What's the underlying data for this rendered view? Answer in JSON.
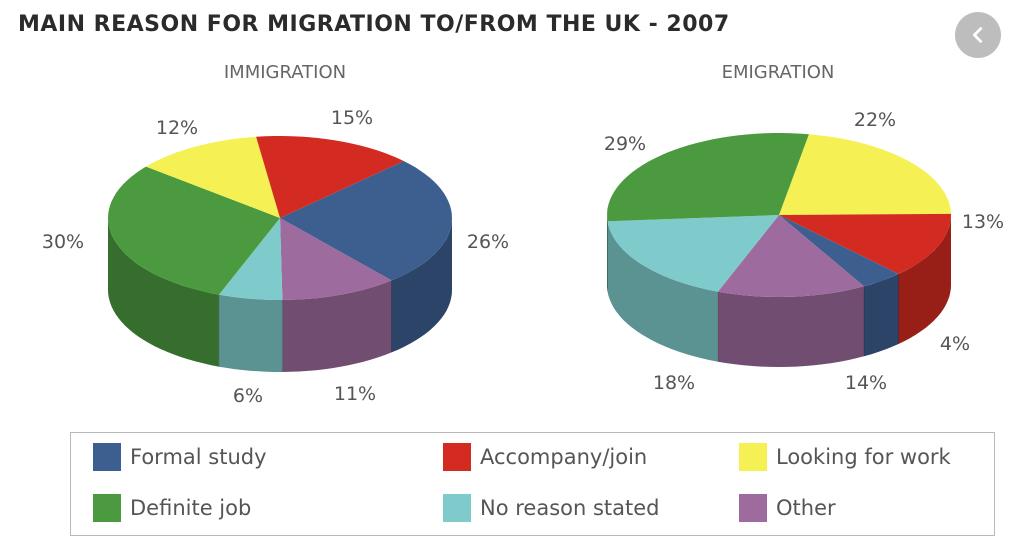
{
  "title": "MAIN REASON FOR MIGRATION TO/FROM THE UK - 2007",
  "back_icon": "chevron-left-icon",
  "colors": {
    "formal_study": "#3d5f8f",
    "accompany_join": "#d32b22",
    "looking_for_work": "#f5f054",
    "definite_job": "#4b9a3f",
    "no_reason_stated": "#7fcbcb",
    "other": "#9d6b9d"
  },
  "chart_data": [
    {
      "type": "pie",
      "title": "IMMIGRATION",
      "slices": [
        {
          "label": "Formal study",
          "value": 26,
          "text": "26%"
        },
        {
          "label": "Other",
          "value": 11,
          "text": "11%"
        },
        {
          "label": "No reason stated",
          "value": 6,
          "text": "6%"
        },
        {
          "label": "Definite job",
          "value": 30,
          "text": "30%"
        },
        {
          "label": "Looking for work",
          "value": 12,
          "text": "12%"
        },
        {
          "label": "Accompany/join",
          "value": 15,
          "text": "15%"
        }
      ]
    },
    {
      "type": "pie",
      "title": "EMIGRATION",
      "slices": [
        {
          "label": "Looking for work",
          "value": 22,
          "text": "22%"
        },
        {
          "label": "Accompany/join",
          "value": 13,
          "text": "13%"
        },
        {
          "label": "Formal study",
          "value": 4,
          "text": "4%"
        },
        {
          "label": "Other",
          "value": 14,
          "text": "14%"
        },
        {
          "label": "No reason stated",
          "value": 18,
          "text": "18%"
        },
        {
          "label": "Definite job",
          "value": 29,
          "text": "29%"
        }
      ]
    }
  ],
  "legend": [
    {
      "label": "Formal study"
    },
    {
      "label": "Accompany/join"
    },
    {
      "label": "Looking for work"
    },
    {
      "label": "Definite job"
    },
    {
      "label": "No reason stated"
    },
    {
      "label": "Other"
    }
  ]
}
